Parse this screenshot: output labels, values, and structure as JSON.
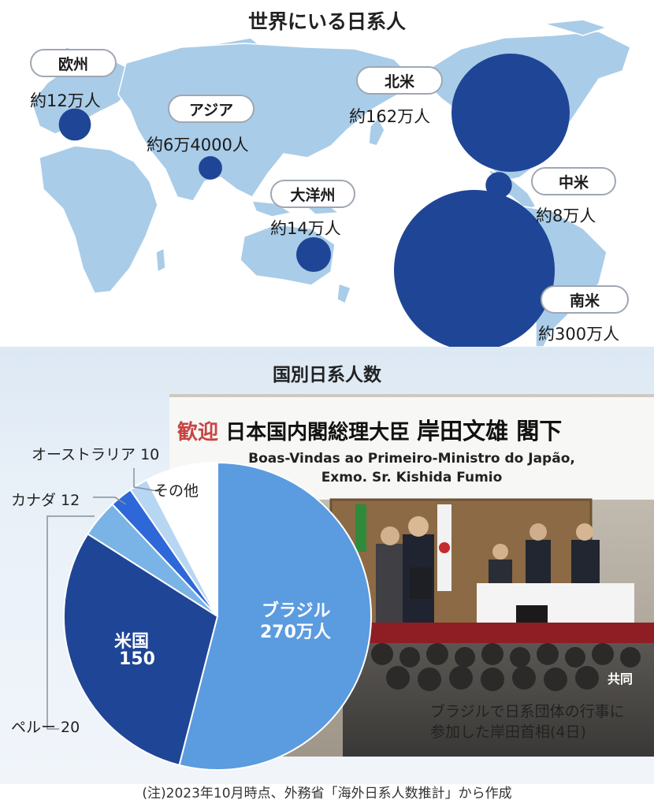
{
  "map": {
    "title": "世界にいる日系人",
    "regions": [
      {
        "name": "欧州",
        "value": "約12万人",
        "count_10k": 12
      },
      {
        "name": "アジア",
        "value": "約6万4000人",
        "count_10k": 6.4
      },
      {
        "name": "大洋州",
        "value": "約14万人",
        "count_10k": 14
      },
      {
        "name": "北米",
        "value": "約162万人",
        "count_10k": 162
      },
      {
        "name": "中米",
        "value": "約8万人",
        "count_10k": 8
      },
      {
        "name": "南米",
        "value": "約300万人",
        "count_10k": 300
      }
    ]
  },
  "pie_section": {
    "title": "国別日系人数"
  },
  "chart_data": [
    {
      "type": "pie",
      "title": "国別日系人数",
      "unit": "万人",
      "categories": [
        "ブラジル",
        "米国",
        "ペルー",
        "カナダ",
        "オーストラリア",
        "その他"
      ],
      "values": [
        270,
        150,
        20,
        12,
        10,
        38
      ],
      "colors": [
        "#5b9bdf",
        "#1f4596",
        "#7ab4e6",
        "#2e67d8",
        "#b7d6f2",
        "#ffffff"
      ],
      "labels": {
        "brazil_name": "ブラジル",
        "brazil_value": "270万人",
        "us_name": "米国",
        "us_value": "150",
        "peru": "ペルー 20",
        "canada": "カナダ 12",
        "australia": "オーストラリア 10",
        "other": "その他"
      }
    }
  ],
  "photo": {
    "banner_line1_accent": "歓迎",
    "banner_line1": "日本国内閣総理大臣",
    "banner_line1_name": "岸田文雄 閣下",
    "banner_line2": "Boas-Vindas ao Primeiro-Ministro do Japão,",
    "banner_line3": "Exmo. Sr. Kishida Fumio",
    "credit": "共同",
    "caption_line1": "ブラジルで日系団体の行事に",
    "caption_line2": "参加した岸田首相(4日)"
  },
  "note": "(注)2023年10月時点、外務省「海外日系人数推計」から作成"
}
